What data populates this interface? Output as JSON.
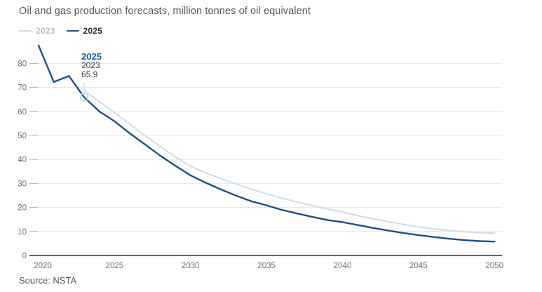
{
  "header": {
    "title": "Oil and gas production forecasts, million tonnes of oil equivalent"
  },
  "legend": {
    "items": [
      {
        "label": "2023",
        "swatch_color": "#cbdeea",
        "label_color": "#b9bfc4"
      },
      {
        "label": "2025",
        "swatch_color": "#1d4f8c",
        "label_color": "#2b2b2b"
      }
    ]
  },
  "tooltip": {
    "series_label": "2025",
    "year_label": "2023",
    "value_label": "65.9"
  },
  "footer": {
    "source": "Source: NSTA"
  },
  "colors": {
    "background": "#ffffff",
    "grid": "#e6e6e6",
    "tick_dash": "#b0b0b0",
    "axis": "#2b2b2b",
    "tick_label": "#6d6d6d",
    "title": "#58585a",
    "marker_ring": "#c3ced6",
    "guide_line": "#ccd9e2",
    "series_2023": "#cbdeea",
    "series_2025": "#1d4f8c"
  },
  "chart_data": {
    "type": "line",
    "title": "Oil and gas production forecasts, million tonnes of oil equivalent",
    "xlabel": "",
    "ylabel": "million tonnes of oil equivalent",
    "x_ticks": [
      2020,
      2025,
      2030,
      2035,
      2040,
      2045,
      2050
    ],
    "y_ticks": [
      0,
      10,
      20,
      30,
      40,
      50,
      60,
      70,
      80
    ],
    "xlim": [
      2020,
      2050
    ],
    "ylim": [
      0,
      88
    ],
    "grid": "horizontal",
    "legend_position": "top-left",
    "series": [
      {
        "name": "2023",
        "color": "#cbdeea",
        "width": 2,
        "x": [
          2023,
          2024,
          2025,
          2026,
          2027,
          2028,
          2029,
          2030,
          2031,
          2032,
          2033,
          2034,
          2035,
          2036,
          2037,
          2038,
          2039,
          2040,
          2041,
          2042,
          2043,
          2044,
          2045,
          2046,
          2047,
          2048,
          2049,
          2050
        ],
        "values": [
          68.8,
          64.0,
          59.5,
          54.8,
          49.9,
          45.5,
          41.1,
          37.2,
          34.4,
          32.0,
          29.8,
          27.6,
          25.7,
          23.9,
          22.3,
          20.8,
          19.4,
          18.1,
          16.6,
          15.3,
          14.1,
          13.0,
          11.9,
          11.1,
          10.4,
          9.9,
          9.5,
          9.3
        ]
      },
      {
        "name": "2025",
        "color": "#1d4f8c",
        "width": 2.4,
        "x": [
          2020,
          2021,
          2022,
          2023,
          2024,
          2025,
          2026,
          2027,
          2028,
          2029,
          2030,
          2031,
          2032,
          2033,
          2034,
          2035,
          2036,
          2037,
          2038,
          2039,
          2040,
          2041,
          2042,
          2043,
          2044,
          2045,
          2046,
          2047,
          2048,
          2049,
          2050
        ],
        "values": [
          87.5,
          72.3,
          74.8,
          65.9,
          60.0,
          55.9,
          50.9,
          46.3,
          41.6,
          37.4,
          33.4,
          30.3,
          27.5,
          24.9,
          22.6,
          20.9,
          19.0,
          17.5,
          16.1,
          14.8,
          13.9,
          12.7,
          11.5,
          10.4,
          9.4,
          8.5,
          7.7,
          7.0,
          6.4,
          6.0,
          5.8
        ]
      }
    ],
    "annotation": {
      "series": "2025",
      "x": 2023,
      "y": 65.9,
      "lines": [
        "2025",
        "2023",
        "65.9"
      ]
    }
  }
}
